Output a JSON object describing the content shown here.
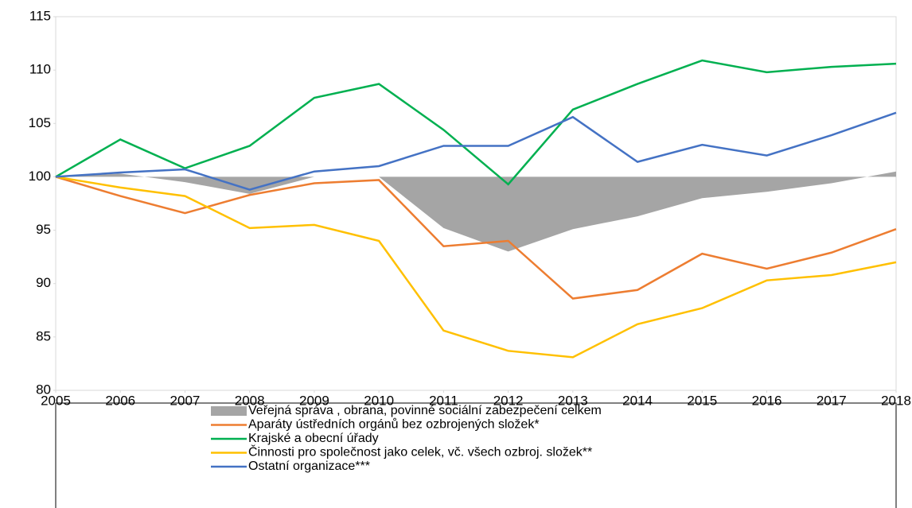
{
  "chart_data": {
    "type": "line",
    "x": [
      2005,
      2006,
      2007,
      2008,
      2009,
      2010,
      2011,
      2012,
      2013,
      2014,
      2015,
      2016,
      2017,
      2018
    ],
    "xlim": [
      2005,
      2018
    ],
    "xticks": [
      2005,
      2006,
      2007,
      2008,
      2009,
      2010,
      2011,
      2012,
      2013,
      2014,
      2015,
      2016,
      2017,
      2018
    ],
    "ylim": [
      80,
      115
    ],
    "yticks": [
      80,
      85,
      90,
      95,
      100,
      105,
      110,
      115
    ],
    "area_base": 100,
    "series": [
      {
        "name": "Veřejná správa , obrana, povinné sociální zabezpečení celkem",
        "color": "#a5a5a5",
        "style": "area",
        "values": [
          100,
          100.3,
          99.5,
          98.4,
          100,
          100,
          95.2,
          93.0,
          95.1,
          96.3,
          98.0,
          98.6,
          99.4,
          100.5
        ]
      },
      {
        "name": "Aparáty ústředních orgánů bez ozbrojených složek*",
        "color": "#ed7d31",
        "style": "line",
        "values": [
          100,
          98.2,
          96.6,
          98.3,
          99.4,
          99.7,
          93.5,
          94.0,
          88.6,
          89.4,
          92.8,
          91.4,
          92.9,
          95.1
        ]
      },
      {
        "name": "Krajské a obecní úřady",
        "color": "#00b050",
        "style": "line",
        "values": [
          100,
          103.5,
          100.8,
          102.9,
          107.4,
          108.7,
          104.4,
          99.3,
          106.3,
          108.7,
          110.9,
          109.8,
          110.3,
          110.6
        ]
      },
      {
        "name": "Činnosti pro společnost jako celek, vč. všech ozbroj. složek**",
        "color": "#ffc000",
        "style": "line",
        "values": [
          100,
          99.0,
          98.2,
          95.2,
          95.5,
          94.0,
          85.6,
          83.7,
          83.1,
          86.2,
          87.7,
          90.3,
          90.8,
          92.0
        ]
      },
      {
        "name": "Ostatní organizace***",
        "color": "#4472c4",
        "style": "line",
        "values": [
          100,
          100.4,
          100.7,
          98.8,
          100.5,
          101.0,
          102.9,
          102.9,
          105.6,
          101.4,
          103.0,
          102.0,
          103.9,
          106.0
        ]
      }
    ]
  }
}
